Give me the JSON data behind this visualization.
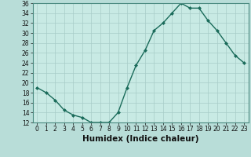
{
  "x": [
    0,
    1,
    2,
    3,
    4,
    5,
    6,
    7,
    8,
    9,
    10,
    11,
    12,
    13,
    14,
    15,
    16,
    17,
    18,
    19,
    20,
    21,
    22,
    23
  ],
  "y": [
    19,
    18,
    16.5,
    14.5,
    13.5,
    13,
    12,
    12,
    12,
    14,
    19,
    23.5,
    26.5,
    30.5,
    32,
    34,
    36,
    35,
    35,
    32.5,
    30.5,
    28,
    25.5,
    24
  ],
  "line_color": "#1a6b5a",
  "marker": "D",
  "marker_size": 2.0,
  "bg_color": "#b8ddd8",
  "plot_bg_color": "#c8eae4",
  "grid_color": "#a8ccc8",
  "xlabel": "Humidex (Indice chaleur)",
  "ylim": [
    12,
    36
  ],
  "xlim": [
    -0.5,
    23.5
  ],
  "yticks": [
    12,
    14,
    16,
    18,
    20,
    22,
    24,
    26,
    28,
    30,
    32,
    34,
    36
  ],
  "xticks": [
    0,
    1,
    2,
    3,
    4,
    5,
    6,
    7,
    8,
    9,
    10,
    11,
    12,
    13,
    14,
    15,
    16,
    17,
    18,
    19,
    20,
    21,
    22,
    23
  ],
  "tick_label_fontsize": 5.5,
  "xlabel_fontsize": 7.5,
  "linewidth": 1.0
}
